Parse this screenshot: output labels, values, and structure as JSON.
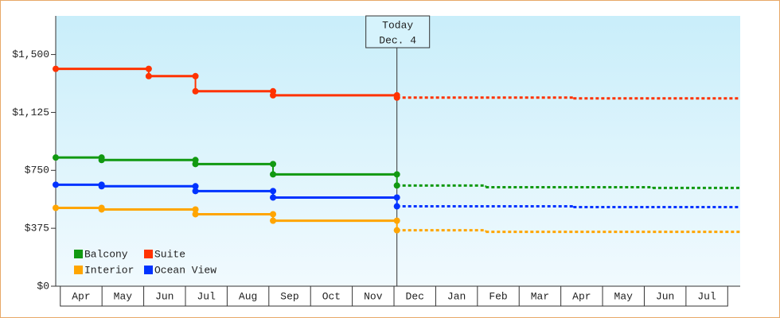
{
  "chart_data": {
    "type": "step",
    "categories": [
      "Apr",
      "May",
      "Jun",
      "Jul",
      "Aug",
      "Sep",
      "Oct",
      "Nov",
      "Dec",
      "Jan",
      "Feb",
      "Mar",
      "Apr",
      "May",
      "Jun",
      "Jul"
    ],
    "xlim": [
      -0.11,
      16.3
    ],
    "ylim": [
      0,
      1750
    ],
    "yticks": [
      {
        "value": 0,
        "label": "$0"
      },
      {
        "value": 375,
        "label": "$375"
      },
      {
        "value": 750,
        "label": "$750"
      },
      {
        "value": 1125,
        "label": "$1,125"
      },
      {
        "value": 1500,
        "label": "$1,500"
      }
    ],
    "grid": false,
    "today": {
      "label": [
        "Today",
        "Dec. 4"
      ],
      "x": 8.07
    },
    "series": [
      {
        "name": "Balcony",
        "color": "#119911",
        "x": [
          -0.11,
          0.99,
          3.24,
          5.1,
          8.07,
          10.2,
          14.2
        ],
        "values": [
          833,
          817,
          791,
          724,
          652,
          641,
          636
        ]
      },
      {
        "name": "Suite",
        "color": "#ff3300",
        "x": [
          -0.11,
          2.12,
          3.24,
          5.1,
          8.07,
          12.3
        ],
        "values": [
          1407,
          1360,
          1262,
          1236,
          1221,
          1216
        ]
      },
      {
        "name": "Interior",
        "color": "#ffa500",
        "x": [
          -0.11,
          0.99,
          3.24,
          5.1,
          8.07,
          10.2
        ],
        "values": [
          507,
          497,
          466,
          424,
          362,
          352
        ]
      },
      {
        "name": "Ocean View",
        "color": "#0033ff",
        "x": [
          -0.11,
          0.99,
          3.24,
          5.1,
          8.07,
          12.3
        ],
        "values": [
          657,
          647,
          616,
          574,
          517,
          512
        ]
      }
    ]
  }
}
